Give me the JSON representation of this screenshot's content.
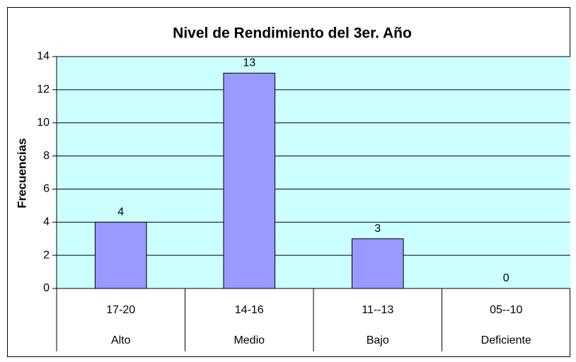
{
  "chart_data": {
    "type": "bar",
    "title": "Nivel de Rendimiento del 3er. Año",
    "y_label": "Frecuencias",
    "categories": [
      "17-20",
      "14-16",
      "11--13",
      "05--10"
    ],
    "category_groups": [
      "Alto",
      "Medio",
      "Bajo",
      "Deficiente"
    ],
    "values": [
      4,
      13,
      3,
      0
    ],
    "color": "#9999ff",
    "plot_background": "#ccffff",
    "ylim": [
      0,
      14
    ],
    "yticks": [
      0,
      2,
      4,
      6,
      8,
      10,
      12,
      14
    ],
    "grid": true
  }
}
